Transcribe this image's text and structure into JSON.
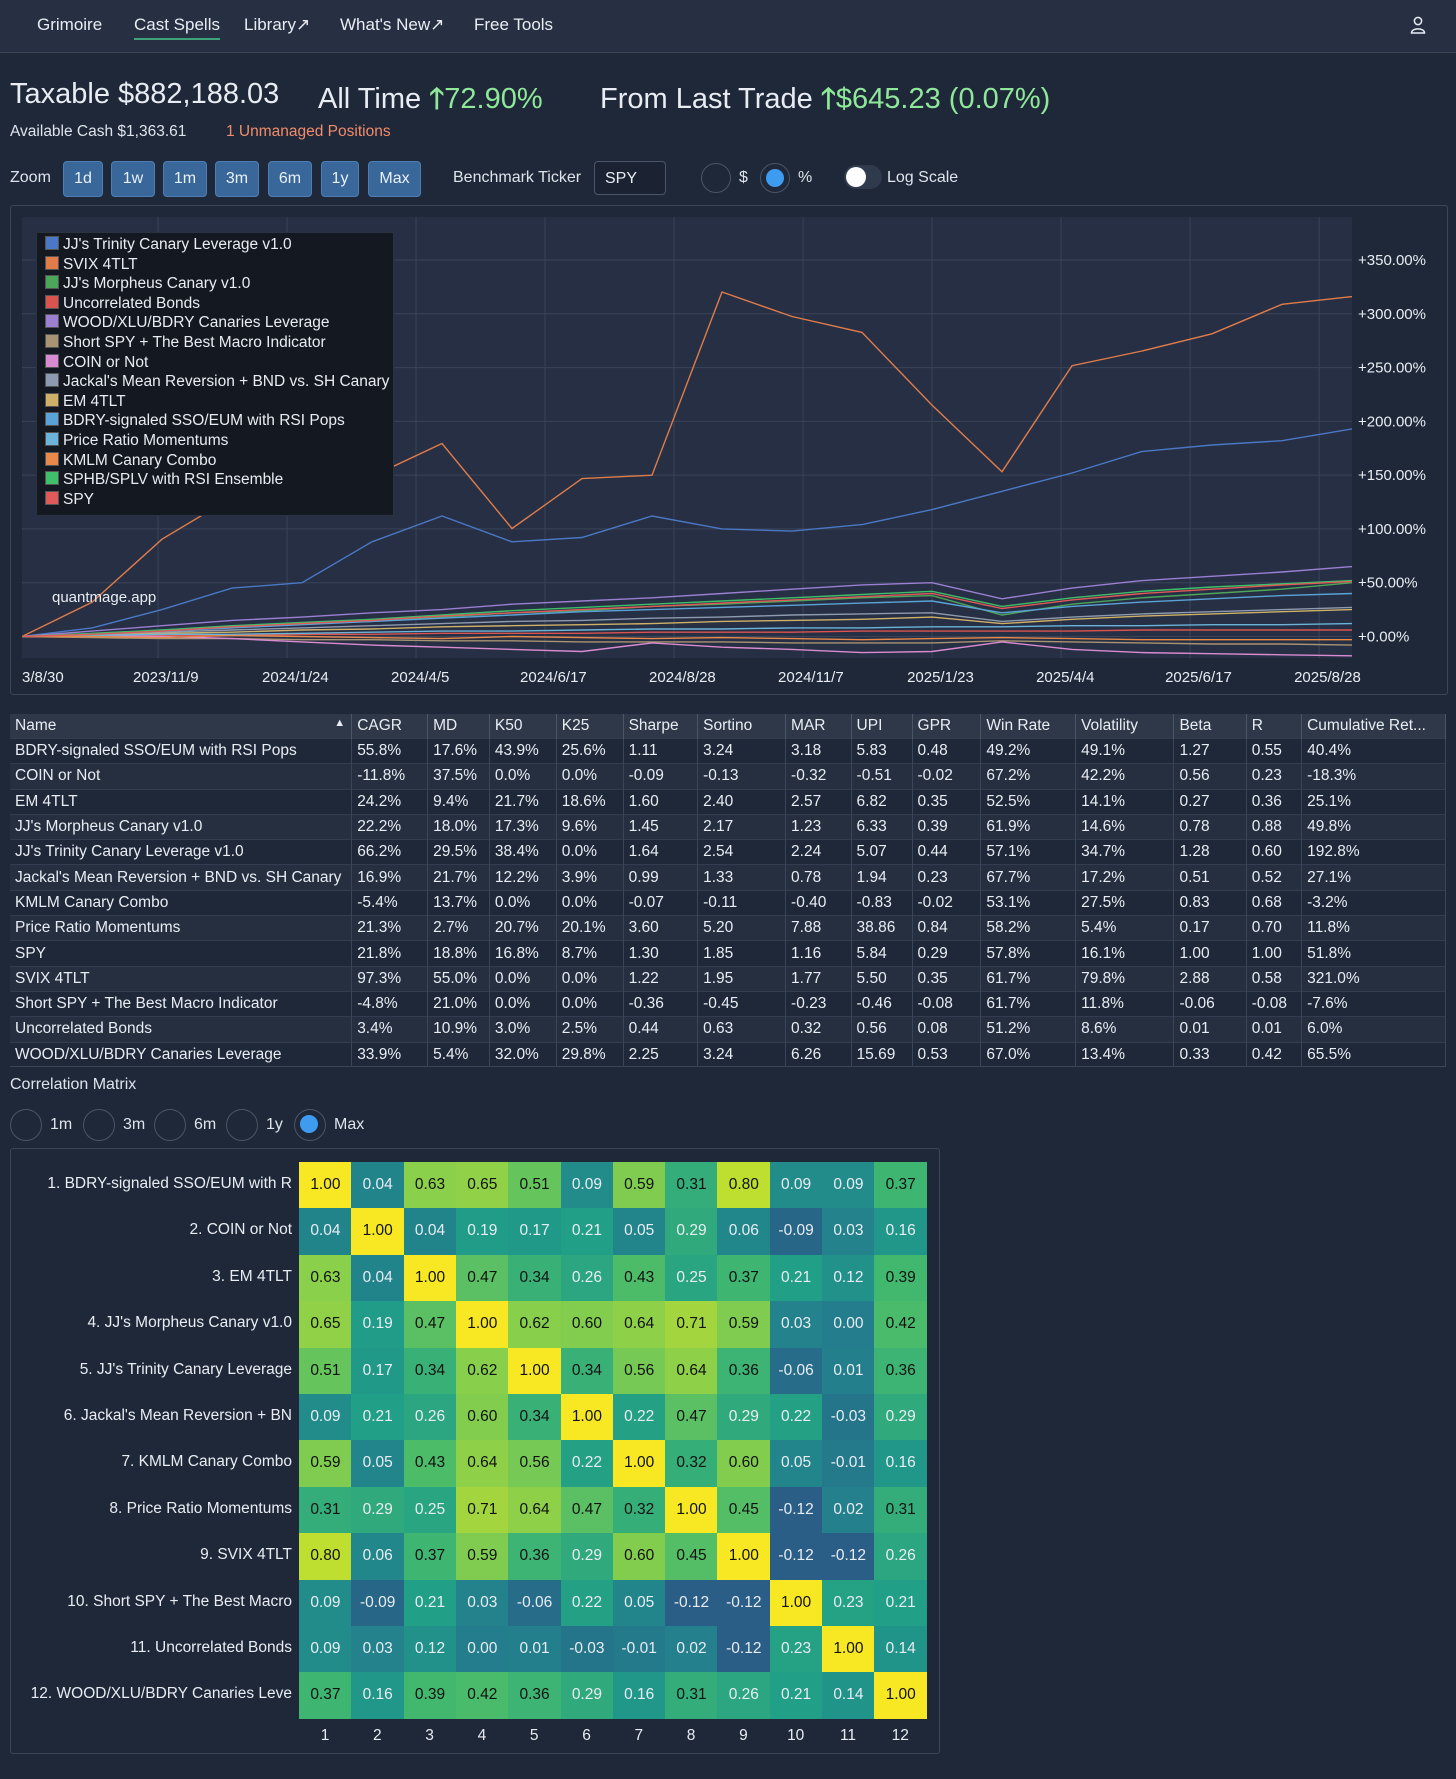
{
  "nav": {
    "items": [
      "Grimoire",
      "Cast Spells",
      "Library↗",
      "What's New↗",
      "Free Tools"
    ],
    "active_index": 1,
    "user_icon": "user-icon"
  },
  "summary": {
    "taxable": "Taxable $882,188.03",
    "all_time_label": "All Time",
    "all_time_value": "72.90%",
    "last_trade_label": "From Last Trade",
    "last_trade_value": "$645.23 (0.07%)",
    "up_arrow": "🡑",
    "available_cash": "Available Cash $1,363.61",
    "unmanaged": "1 Unmanaged Positions",
    "positive_color": "#8fe89a",
    "warning_color": "#f28b6b"
  },
  "controls": {
    "zoom_label": "Zoom",
    "zoom_buttons": [
      "1d",
      "1w",
      "1m",
      "3m",
      "6m",
      "1y",
      "Max"
    ],
    "benchmark_label": "Benchmark Ticker",
    "benchmark_value": "SPY",
    "mode_dollar": "$",
    "mode_percent": "%",
    "mode_selected": "%",
    "log_scale_label": "Log Scale",
    "log_scale_on": false
  },
  "chart_data": {
    "type": "line",
    "watermark": "quantmage.app",
    "x_ticks": [
      "3/8/30",
      "2023/11/9",
      "2024/1/24",
      "2024/4/5",
      "2024/6/17",
      "2024/8/28",
      "2024/11/7",
      "2025/1/23",
      "2025/4/4",
      "2025/6/17",
      "2025/8/28"
    ],
    "y_ticks": [
      "+0.00%",
      "+50.00%",
      "+100.00%",
      "+150.00%",
      "+200.00%",
      "+250.00%",
      "+300.00%",
      "+350.00%"
    ],
    "ylim": [
      -20,
      390
    ],
    "legend_placement": "top-left",
    "series": [
      {
        "name": "JJ's Trinity Canary Leverage v1.0",
        "color": "#4a78c4",
        "values": [
          0,
          8,
          25,
          45,
          50,
          88,
          112,
          88,
          92,
          112,
          100,
          98,
          104,
          118,
          135,
          152,
          172,
          178,
          182,
          193
        ]
      },
      {
        "name": "SVIX 4TLT",
        "color": "#e07c4a",
        "values": [
          0,
          32,
          90,
          130,
          145,
          150,
          178,
          102,
          145,
          152,
          318,
          300,
          280,
          218,
          150,
          255,
          262,
          285,
          305,
          320
        ]
      },
      {
        "name": "JJ's Morpheus Canary v1.0",
        "color": "#4ca65a",
        "values": [
          0,
          2,
          6,
          9,
          12,
          14,
          18,
          22,
          24,
          28,
          30,
          33,
          36,
          38,
          20,
          30,
          36,
          40,
          44,
          50
        ]
      },
      {
        "name": "Uncorrelated Bonds",
        "color": "#d9534f",
        "values": [
          0,
          0,
          1,
          1,
          2,
          2,
          3,
          3,
          3,
          4,
          4,
          4,
          5,
          5,
          5,
          5,
          6,
          6,
          6,
          6
        ]
      },
      {
        "name": "WOOD/XLU/BDRY Canaries Leverage",
        "color": "#9b7fd1",
        "values": [
          0,
          5,
          10,
          15,
          18,
          22,
          25,
          30,
          33,
          36,
          40,
          44,
          48,
          50,
          35,
          45,
          52,
          56,
          60,
          65
        ]
      },
      {
        "name": "Short SPY + The Best Macro Indicator",
        "color": "#a89372",
        "values": [
          0,
          -1,
          -2,
          -2,
          -3,
          -3,
          -4,
          -4,
          -5,
          -5,
          -5,
          -6,
          -6,
          -6,
          -4,
          -5,
          -6,
          -7,
          -7,
          -8
        ]
      },
      {
        "name": "COIN or Not",
        "color": "#d98bd1",
        "values": [
          0,
          1,
          0,
          -2,
          -5,
          -8,
          -10,
          -12,
          -14,
          -6,
          -10,
          -12,
          -15,
          -14,
          -5,
          -12,
          -15,
          -16,
          -17,
          -18
        ]
      },
      {
        "name": "Jackal's Mean Reversion + BND vs. SH Canary",
        "color": "#8e9aaf",
        "values": [
          0,
          2,
          4,
          6,
          8,
          10,
          12,
          14,
          15,
          17,
          18,
          20,
          21,
          22,
          14,
          18,
          21,
          23,
          25,
          27
        ]
      },
      {
        "name": "EM 4TLT",
        "color": "#cfb06a",
        "values": [
          0,
          1,
          3,
          4,
          6,
          7,
          9,
          10,
          11,
          12,
          14,
          15,
          16,
          18,
          12,
          16,
          19,
          21,
          23,
          25
        ]
      },
      {
        "name": "BDRY-signaled SSO/EUM with RSI Pops",
        "color": "#5aa3d6",
        "values": [
          0,
          2,
          5,
          8,
          11,
          14,
          17,
          20,
          23,
          25,
          27,
          29,
          31,
          33,
          22,
          28,
          32,
          35,
          38,
          40
        ]
      },
      {
        "name": "Price Ratio Momentums",
        "color": "#6bb3d9",
        "values": [
          0,
          1,
          2,
          2,
          3,
          4,
          5,
          5,
          6,
          7,
          7,
          8,
          8,
          9,
          9,
          10,
          10,
          11,
          11,
          12
        ]
      },
      {
        "name": "KMLM Canary Combo",
        "color": "#e8894a",
        "values": [
          0,
          0,
          -1,
          1,
          0,
          -1,
          -2,
          0,
          -1,
          -2,
          -1,
          -2,
          -3,
          -2,
          -1,
          -2,
          -3,
          -3,
          -3,
          -3
        ]
      },
      {
        "name": "SPHB/SPLV with RSI Ensemble",
        "color": "#3fbf6a",
        "values": [
          0,
          3,
          6,
          10,
          13,
          16,
          20,
          24,
          27,
          30,
          33,
          36,
          39,
          42,
          28,
          36,
          42,
          46,
          49,
          52
        ]
      },
      {
        "name": "SPY",
        "color": "#e05a5a",
        "values": [
          0,
          2,
          5,
          9,
          12,
          15,
          19,
          22,
          25,
          28,
          31,
          34,
          37,
          40,
          26,
          34,
          40,
          44,
          48,
          51
        ]
      }
    ]
  },
  "table": {
    "columns": [
      "Name",
      "CAGR",
      "MD",
      "K50",
      "K25",
      "Sharpe",
      "Sortino",
      "MAR",
      "UPI",
      "GPR",
      "Win Rate",
      "Volatility",
      "Beta",
      "R",
      "Cumulative Ret..."
    ],
    "sort_indicator": "▲",
    "rows": [
      [
        "BDRY-signaled SSO/EUM with RSI Pops",
        "55.8%",
        "17.6%",
        "43.9%",
        "25.6%",
        "1.11",
        "3.24",
        "3.18",
        "5.83",
        "0.48",
        "49.2%",
        "49.1%",
        "1.27",
        "0.55",
        "40.4%"
      ],
      [
        "COIN or Not",
        "-11.8%",
        "37.5%",
        "0.0%",
        "0.0%",
        "-0.09",
        "-0.13",
        "-0.32",
        "-0.51",
        "-0.02",
        "67.2%",
        "42.2%",
        "0.56",
        "0.23",
        "-18.3%"
      ],
      [
        "EM 4TLT",
        "24.2%",
        "9.4%",
        "21.7%",
        "18.6%",
        "1.60",
        "2.40",
        "2.57",
        "6.82",
        "0.35",
        "52.5%",
        "14.1%",
        "0.27",
        "0.36",
        "25.1%"
      ],
      [
        "JJ's Morpheus Canary v1.0",
        "22.2%",
        "18.0%",
        "17.3%",
        "9.6%",
        "1.45",
        "2.17",
        "1.23",
        "6.33",
        "0.39",
        "61.9%",
        "14.6%",
        "0.78",
        "0.88",
        "49.8%"
      ],
      [
        "JJ's Trinity Canary Leverage v1.0",
        "66.2%",
        "29.5%",
        "38.4%",
        "0.0%",
        "1.64",
        "2.54",
        "2.24",
        "5.07",
        "0.44",
        "57.1%",
        "34.7%",
        "1.28",
        "0.60",
        "192.8%"
      ],
      [
        "Jackal's Mean Reversion + BND vs. SH Canary",
        "16.9%",
        "21.7%",
        "12.2%",
        "3.9%",
        "0.99",
        "1.33",
        "0.78",
        "1.94",
        "0.23",
        "67.7%",
        "17.2%",
        "0.51",
        "0.52",
        "27.1%"
      ],
      [
        "KMLM Canary Combo",
        "-5.4%",
        "13.7%",
        "0.0%",
        "0.0%",
        "-0.07",
        "-0.11",
        "-0.40",
        "-0.83",
        "-0.02",
        "53.1%",
        "27.5%",
        "0.83",
        "0.68",
        "-3.2%"
      ],
      [
        "Price Ratio Momentums",
        "21.3%",
        "2.7%",
        "20.7%",
        "20.1%",
        "3.60",
        "5.20",
        "7.88",
        "38.86",
        "0.84",
        "58.2%",
        "5.4%",
        "0.17",
        "0.70",
        "11.8%"
      ],
      [
        "SPY",
        "21.8%",
        "18.8%",
        "16.8%",
        "8.7%",
        "1.30",
        "1.85",
        "1.16",
        "5.84",
        "0.29",
        "57.8%",
        "16.1%",
        "1.00",
        "1.00",
        "51.8%"
      ],
      [
        "SVIX 4TLT",
        "97.3%",
        "55.0%",
        "0.0%",
        "0.0%",
        "1.22",
        "1.95",
        "1.77",
        "5.50",
        "0.35",
        "61.7%",
        "79.8%",
        "2.88",
        "0.58",
        "321.0%"
      ],
      [
        "Short SPY + The Best Macro Indicator",
        "-4.8%",
        "21.0%",
        "0.0%",
        "0.0%",
        "-0.36",
        "-0.45",
        "-0.23",
        "-0.46",
        "-0.08",
        "61.7%",
        "11.8%",
        "-0.06",
        "-0.08",
        "-7.6%"
      ],
      [
        "Uncorrelated Bonds",
        "3.4%",
        "10.9%",
        "3.0%",
        "2.5%",
        "0.44",
        "0.63",
        "0.32",
        "0.56",
        "0.08",
        "51.2%",
        "8.6%",
        "0.01",
        "0.01",
        "6.0%"
      ],
      [
        "WOOD/XLU/BDRY Canaries Leverage",
        "33.9%",
        "5.4%",
        "32.0%",
        "29.8%",
        "2.25",
        "3.24",
        "6.26",
        "15.69",
        "0.53",
        "67.0%",
        "13.4%",
        "0.33",
        "0.42",
        "65.5%"
      ]
    ]
  },
  "correlation": {
    "title": "Correlation Matrix",
    "periods": [
      "1m",
      "3m",
      "6m",
      "1y",
      "Max"
    ],
    "selected_period": "Max",
    "row_labels": [
      "1. BDRY-signaled SSO/EUM with R",
      "2. COIN or Not",
      "3. EM 4TLT",
      "4. JJ's Morpheus Canary v1.0",
      "5. JJ's Trinity Canary Leverage",
      "6. Jackal's Mean Reversion + BN",
      "7. KMLM Canary Combo",
      "8. Price Ratio Momentums",
      "9. SVIX 4TLT",
      "10. Short SPY + The Best Macro",
      "11. Uncorrelated Bonds",
      "12. WOOD/XLU/BDRY Canaries Leve"
    ],
    "col_labels": [
      "1",
      "2",
      "3",
      "4",
      "5",
      "6",
      "7",
      "8",
      "9",
      "10",
      "11",
      "12"
    ],
    "matrix": [
      [
        "1.00",
        "0.04",
        "0.63",
        "0.65",
        "0.51",
        "0.09",
        "0.59",
        "0.31",
        "0.80",
        "0.09",
        "0.09",
        "0.37"
      ],
      [
        "0.04",
        "1.00",
        "0.04",
        "0.19",
        "0.17",
        "0.21",
        "0.05",
        "0.29",
        "0.06",
        "-0.09",
        "0.03",
        "0.16"
      ],
      [
        "0.63",
        "0.04",
        "1.00",
        "0.47",
        "0.34",
        "0.26",
        "0.43",
        "0.25",
        "0.37",
        "0.21",
        "0.12",
        "0.39"
      ],
      [
        "0.65",
        "0.19",
        "0.47",
        "1.00",
        "0.62",
        "0.60",
        "0.64",
        "0.71",
        "0.59",
        "0.03",
        "0.00",
        "0.42"
      ],
      [
        "0.51",
        "0.17",
        "0.34",
        "0.62",
        "1.00",
        "0.34",
        "0.56",
        "0.64",
        "0.36",
        "-0.06",
        "0.01",
        "0.36"
      ],
      [
        "0.09",
        "0.21",
        "0.26",
        "0.60",
        "0.34",
        "1.00",
        "0.22",
        "0.47",
        "0.29",
        "0.22",
        "-0.03",
        "0.29"
      ],
      [
        "0.59",
        "0.05",
        "0.43",
        "0.64",
        "0.56",
        "0.22",
        "1.00",
        "0.32",
        "0.60",
        "0.05",
        "-0.01",
        "0.16"
      ],
      [
        "0.31",
        "0.29",
        "0.25",
        "0.71",
        "0.64",
        "0.47",
        "0.32",
        "1.00",
        "0.45",
        "-0.12",
        "0.02",
        "0.31"
      ],
      [
        "0.80",
        "0.06",
        "0.37",
        "0.59",
        "0.36",
        "0.29",
        "0.60",
        "0.45",
        "1.00",
        "-0.12",
        "-0.12",
        "0.26"
      ],
      [
        "0.09",
        "-0.09",
        "0.21",
        "0.03",
        "-0.06",
        "0.22",
        "0.05",
        "-0.12",
        "-0.12",
        "1.00",
        "0.23",
        "0.21"
      ],
      [
        "0.09",
        "0.03",
        "0.12",
        "0.00",
        "0.01",
        "-0.03",
        "-0.01",
        "0.02",
        "-0.12",
        "0.23",
        "1.00",
        "0.14"
      ],
      [
        "0.37",
        "0.16",
        "0.39",
        "0.42",
        "0.36",
        "0.29",
        "0.16",
        "0.31",
        "0.26",
        "0.21",
        "0.14",
        "1.00"
      ]
    ]
  }
}
